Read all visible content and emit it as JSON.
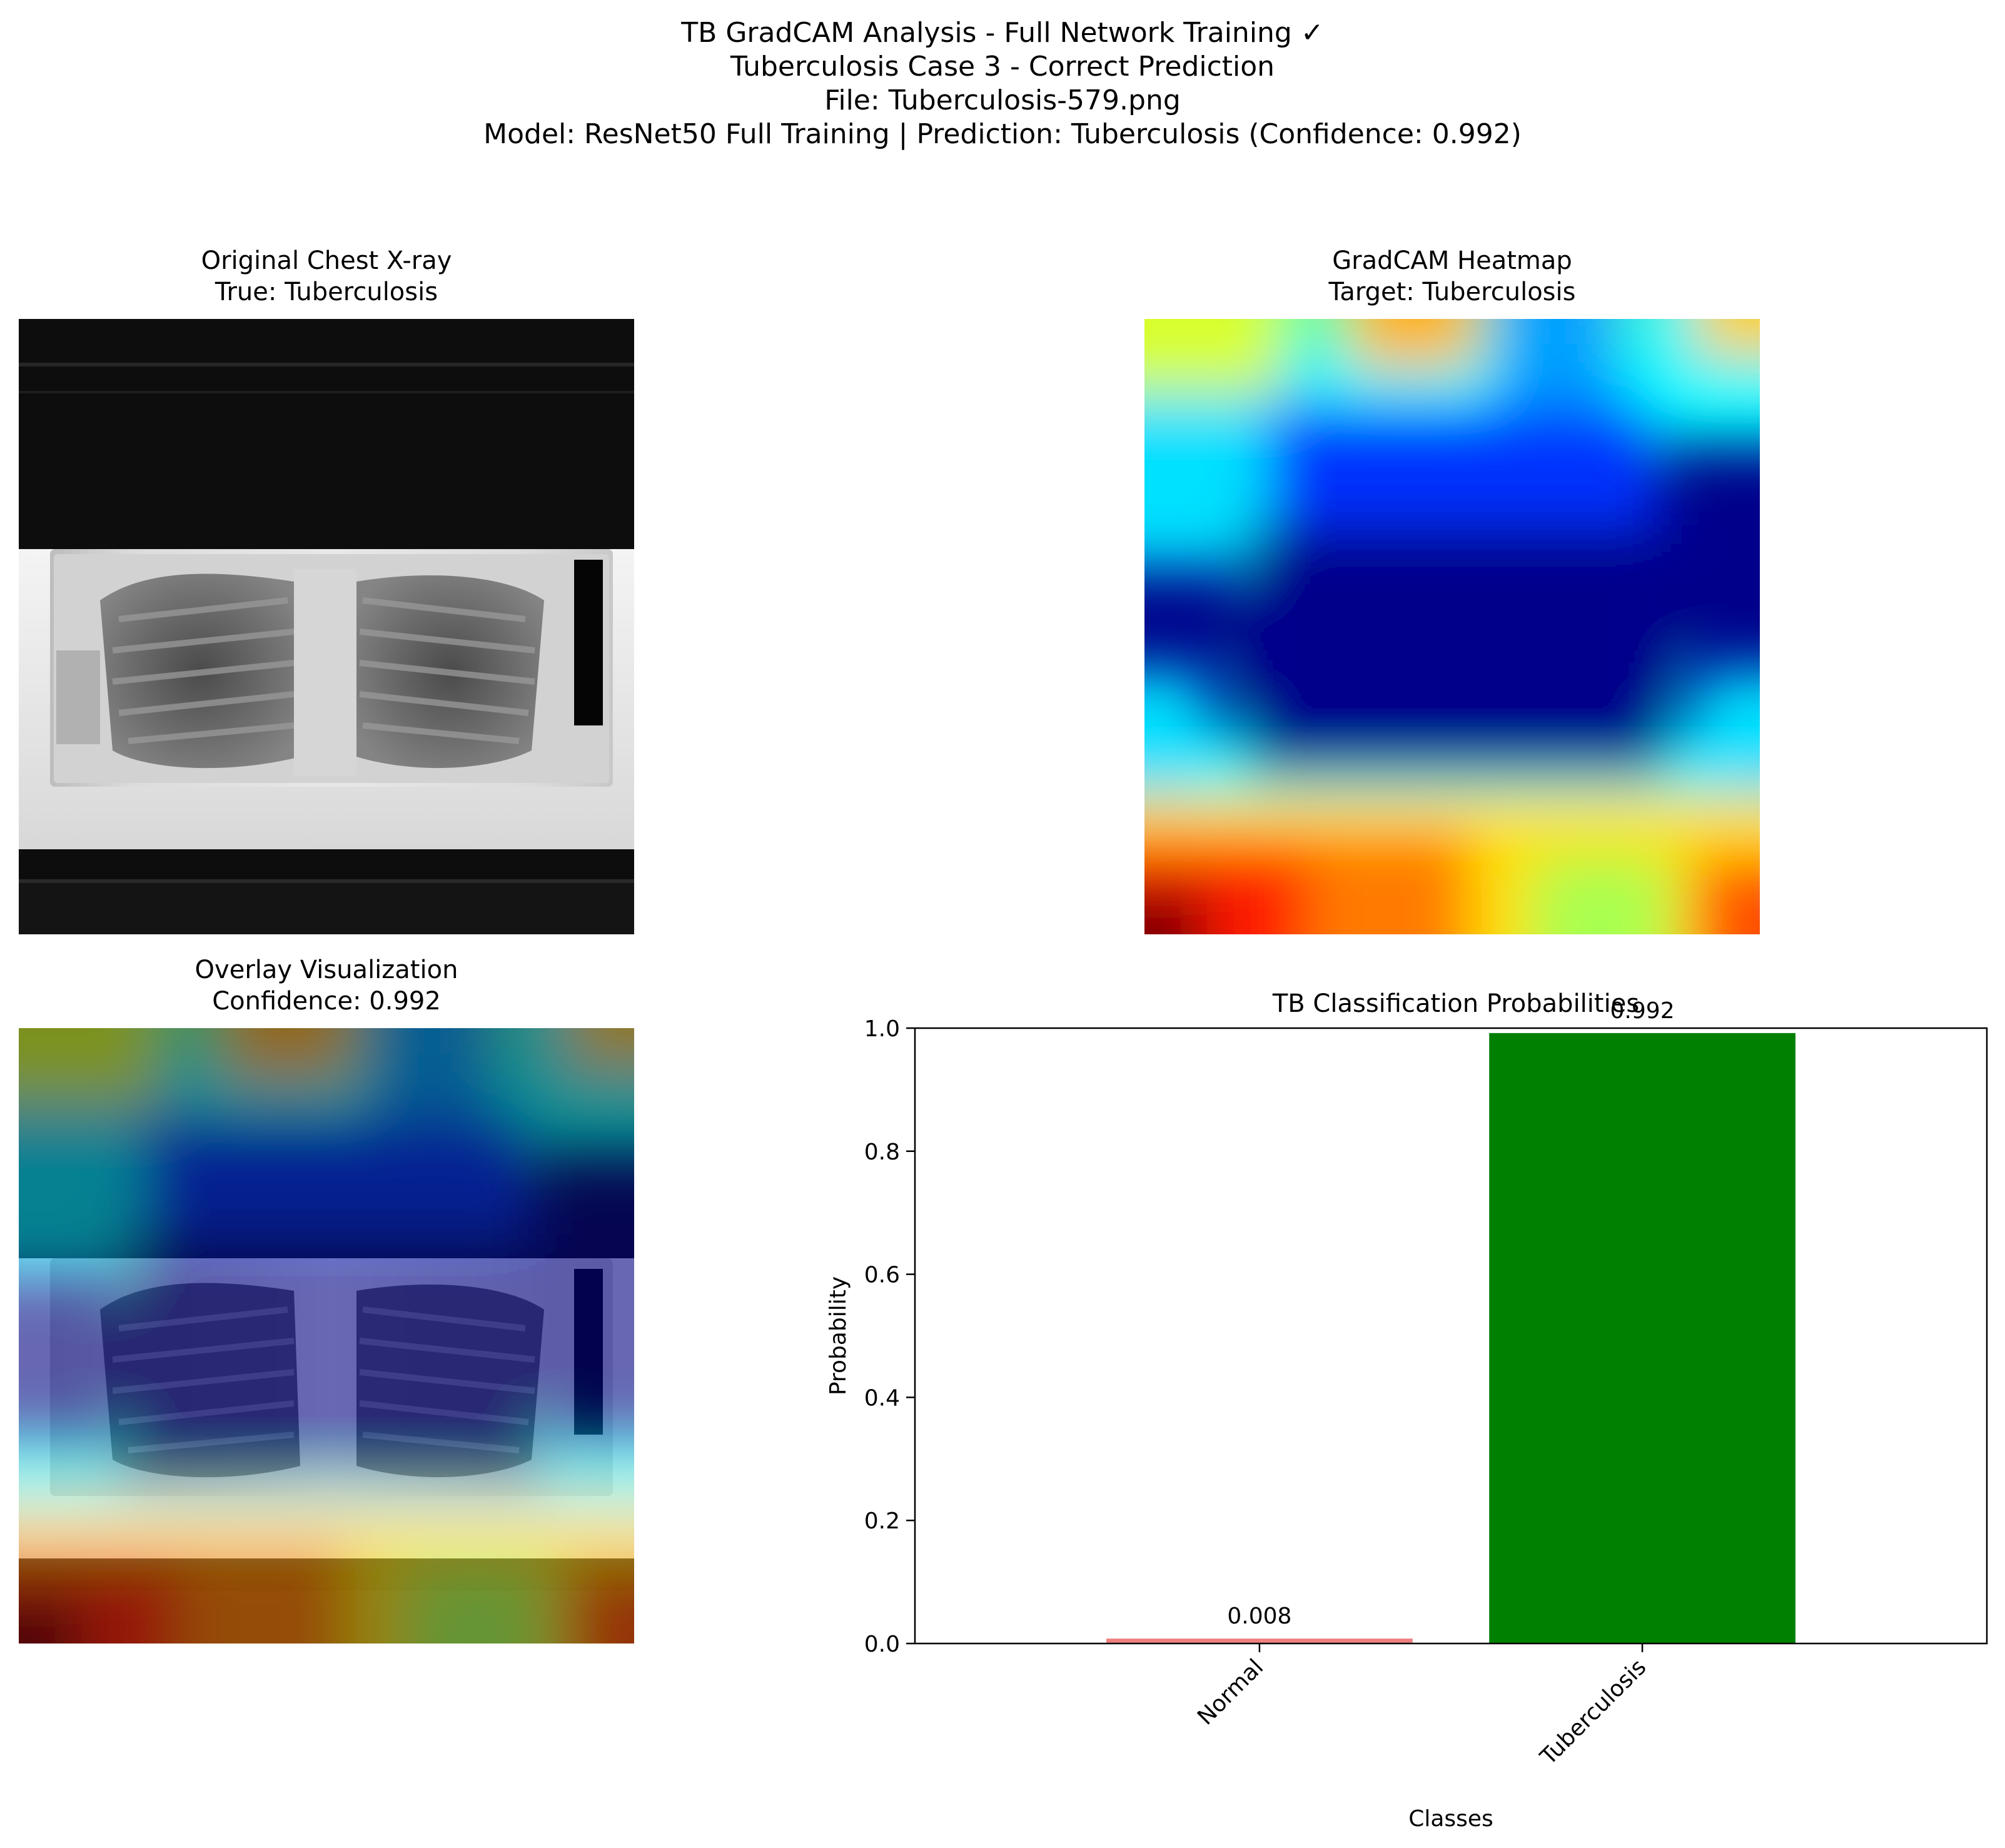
{
  "figure": {
    "title_lines": [
      "TB GradCAM Analysis - Full Network Training ✓",
      "Tuberculosis Case 3 - Correct Prediction",
      "File: Tuberculosis-579.png",
      "Model: ResNet50 Full Training | Prediction: Tuberculosis (Confidence: 0.992)"
    ]
  },
  "panels": {
    "original": {
      "title": "Original Chest X-ray",
      "subtitle": "True: Tuberculosis"
    },
    "heatmap": {
      "title": "GradCAM Heatmap",
      "subtitle": "Target: Tuberculosis"
    },
    "overlay": {
      "title": "Overlay Visualization",
      "subtitle": "Confidence: 0.992"
    }
  },
  "chart_data": {
    "type": "bar",
    "title": "TB Classification Probabilities",
    "xlabel": "Classes",
    "ylabel": "Probability",
    "categories": [
      "Normal",
      "Tuberculosis"
    ],
    "values": [
      0.008,
      0.992
    ],
    "value_labels": [
      "0.008",
      "0.992"
    ],
    "colors": [
      "#f08080",
      "#008000"
    ],
    "ylim": [
      0,
      1.0
    ],
    "yticks": [
      0.0,
      0.2,
      0.4,
      0.6,
      0.8,
      1.0
    ],
    "ytick_labels": [
      "0.0",
      "0.2",
      "0.4",
      "0.6",
      "0.8",
      "1.0"
    ],
    "grid": false,
    "legend": "none"
  }
}
